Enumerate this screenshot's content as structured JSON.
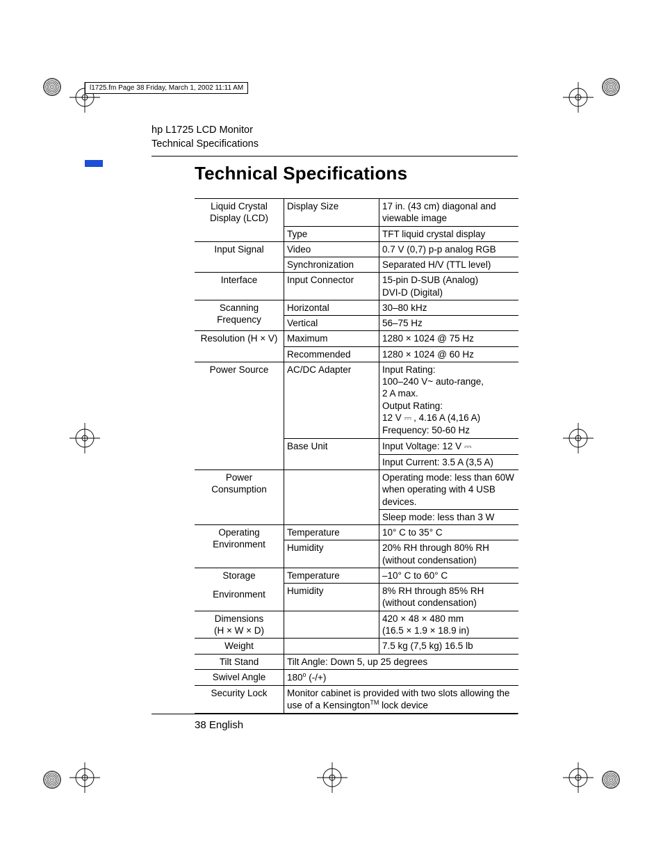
{
  "crop_header": "l1725.fm  Page 38  Friday, March 1, 2002  11:11 AM",
  "running_head": {
    "line1": "hp L1725 LCD Monitor",
    "line2": "Technical Specifications"
  },
  "title": "Technical Specifications",
  "folio": "38 English",
  "accent_color": "#1a4fd6",
  "spec_rows": [
    {
      "c1": "Liquid Crystal Display (LCD)",
      "c1_rowspan": 2,
      "c2": "Display Size",
      "c3": "17 in. (43 cm) diagonal and viewable image"
    },
    {
      "c2": "Type",
      "c3": "TFT liquid crystal display"
    },
    {
      "c1": "Input Signal",
      "c1_rowspan": 2,
      "c2": "Video",
      "c3": "0.7 V (0,7) p-p analog RGB"
    },
    {
      "c2": "Synchronization",
      "c3": "Separated H/V (TTL level)"
    },
    {
      "c1": "Interface",
      "c2": "Input Connector",
      "c3": "15-pin D-SUB (Analog)\nDVI-D (Digital)"
    },
    {
      "c1": "Scanning Frequency",
      "c1_rowspan": 2,
      "c2": "Horizontal",
      "c3": "30–80 kHz"
    },
    {
      "c2": "Vertical",
      "c3": "56–75 Hz"
    },
    {
      "c1": "Resolution (H × V)",
      "c1_rowspan": 2,
      "c2": "Maximum",
      "c3": "1280 × 1024 @ 75 Hz"
    },
    {
      "c2": "Recommended",
      "c3": "1280 × 1024 @ 60 Hz"
    },
    {
      "c1": "Power Source",
      "c1_rowspan": 3,
      "c2": "AC/DC Adapter",
      "c3": "Input Rating:\n100–240 V~ auto-range,\n2 A max.\nOutput Rating:\n12 V ⎓ , 4.16 A (4,16 A)\nFrequency: 50-60 Hz"
    },
    {
      "c2": "Base Unit",
      "c2_rowspan": 2,
      "c3": "Input Voltage: 12 V ⎓"
    },
    {
      "c3": "Input Current: 3.5 A (3,5 A)"
    },
    {
      "c1": "Power Consumption",
      "c1_rowspan": 2,
      "c2": "",
      "c2_rowspan": 2,
      "c3": "Operating mode: less than 60W when operating with 4 USB devices."
    },
    {
      "c3": "Sleep mode: less than 3 W"
    },
    {
      "c1": "Operating Environment",
      "c1_rowspan": 2,
      "c2": "Temperature",
      "c3": "10° C to 35° C"
    },
    {
      "c2": "Humidity",
      "c3": "20% RH through 80% RH (without condensation)"
    },
    {
      "c1": "Storage\nEnvironment",
      "c1_rowspan": 2,
      "c1_gap": true,
      "c2": "Temperature",
      "c3": "–10° C to 60° C"
    },
    {
      "c2": "Humidity",
      "c3": "8% RH through 85% RH (without condensation)"
    },
    {
      "c1": "Dimensions\n(H × W × D)",
      "c2": "",
      "c3": "420 × 48 × 480 mm\n(16.5 × 1.9 × 18.9 in)"
    },
    {
      "c1": "Weight",
      "c2": "",
      "c3": "7.5 kg (7,5 kg) 16.5 lb"
    },
    {
      "c1": "Tilt Stand",
      "c23": "Tilt Angle: Down 5, up 25 degrees"
    },
    {
      "c1": "Swivel Angle",
      "c23": "180° (-/+)",
      "c23_html": "180<span class='sup'>o</span> (-/+)"
    },
    {
      "c1": "Security Lock",
      "c23": "Monitor cabinet is provided with two slots allowing the use of a Kensington™ lock device",
      "c23_html": "Monitor cabinet is provided with two slots allowing the use of a Kensington<span class='sup'>TM</span> lock device"
    }
  ],
  "dc_symbol_html": "<span class='dcsym'>⎓</span>"
}
